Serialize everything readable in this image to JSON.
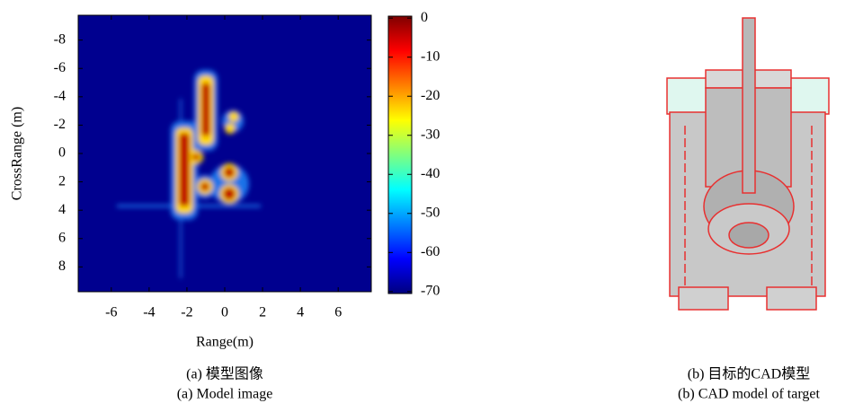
{
  "panel_a": {
    "xlabel": "Range(m)",
    "ylabel": "CrossRange (m)",
    "xlim": [
      -7.75,
      7.75
    ],
    "xticks": [
      -6,
      -4,
      -2,
      0,
      2,
      4,
      6
    ],
    "ylim": [
      9.75,
      -9.75
    ],
    "yticks": [
      -8,
      -6,
      -4,
      -2,
      0,
      2,
      4,
      6,
      8
    ],
    "colorbar": {
      "lim": [
        -70.5,
        0.5
      ],
      "ticks": [
        0,
        -10,
        -20,
        -30,
        -40,
        -50,
        -60,
        -70
      ]
    },
    "caption_cn": "(a) 模型图像",
    "caption_en": "(a) Model image"
  },
  "panel_b": {
    "caption_cn": "(b) 目标的CAD模型",
    "caption_en": "(b) CAD model of target"
  }
}
